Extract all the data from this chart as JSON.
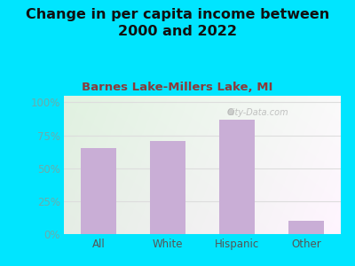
{
  "title": "Change in per capita income between\n2000 and 2022",
  "subtitle": "Barnes Lake-Millers Lake, MI",
  "categories": [
    "All",
    "White",
    "Hispanic",
    "Other"
  ],
  "values": [
    65,
    71,
    87,
    10
  ],
  "bar_color": "#c9aed6",
  "background_outer": "#00e5ff",
  "title_fontsize": 11.5,
  "title_color": "#111111",
  "subtitle_fontsize": 9.5,
  "subtitle_color": "#8b3a3a",
  "ytick_color": "#6aacac",
  "xtick_color": "#555555",
  "yticks": [
    0,
    25,
    50,
    75,
    100
  ],
  "ytick_labels": [
    "0%",
    "25%",
    "50%",
    "75%",
    "100%"
  ],
  "ylim": [
    0,
    105
  ],
  "watermark": "City-Data.com",
  "grid_color": "#dddddd",
  "plot_bg_left": "#e0f0dc",
  "plot_bg_right": "#f5f5e8"
}
